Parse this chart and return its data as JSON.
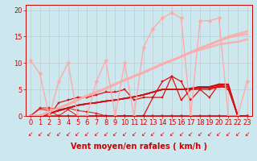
{
  "xlabel": "Vent moyen/en rafales ( km/h )",
  "background_color": "#cce8ee",
  "grid_color": "#bbbbbb",
  "xlim": [
    -0.5,
    23.5
  ],
  "ylim": [
    0,
    21
  ],
  "yticks": [
    0,
    5,
    10,
    15,
    20
  ],
  "xticks": [
    0,
    1,
    2,
    3,
    4,
    5,
    6,
    7,
    8,
    9,
    10,
    11,
    12,
    13,
    14,
    15,
    16,
    17,
    18,
    19,
    20,
    21,
    22,
    23
  ],
  "series": [
    {
      "x": [
        0,
        1,
        2,
        3,
        4,
        5,
        6,
        7,
        8,
        9,
        10,
        11,
        12,
        13,
        14,
        15,
        16,
        17,
        18,
        19,
        20,
        21,
        22,
        23
      ],
      "y": [
        0,
        1.3,
        1.0,
        0,
        1.2,
        0,
        0,
        0,
        0,
        0,
        0,
        0,
        0,
        0,
        0,
        0,
        0,
        0,
        0,
        0,
        0,
        0,
        0,
        0
      ],
      "color": "#dd2222",
      "linewidth": 0.8,
      "marker": "s",
      "markersize": 2.0,
      "alpha": 1.0
    },
    {
      "x": [
        0,
        1,
        2,
        3,
        4,
        5,
        6,
        7,
        8,
        9,
        10,
        11,
        12,
        13,
        14,
        15,
        16,
        17,
        18,
        19,
        20,
        21,
        22,
        23
      ],
      "y": [
        0,
        1.5,
        1.5,
        1.2,
        1.5,
        1.0,
        0.8,
        0.5,
        0,
        0,
        0,
        0,
        0,
        0,
        0,
        0,
        0,
        0,
        0,
        0,
        0,
        0,
        0,
        0
      ],
      "color": "#dd2222",
      "linewidth": 0.8,
      "marker": "s",
      "markersize": 2.0,
      "alpha": 1.0
    },
    {
      "x": [
        0,
        1,
        2,
        3,
        4,
        5,
        6,
        7,
        8,
        9,
        10,
        11,
        12,
        13,
        14,
        15,
        16,
        17,
        18,
        19,
        20,
        21,
        22,
        23
      ],
      "y": [
        0,
        0,
        0,
        0,
        0,
        0,
        0,
        0,
        0,
        0,
        0,
        0,
        0,
        0,
        0,
        0,
        0,
        0,
        0,
        0,
        0,
        0,
        0,
        0
      ],
      "color": "#dd2222",
      "linewidth": 1.0,
      "marker": "s",
      "markersize": 2.0,
      "alpha": 1.0
    },
    {
      "x": [
        0,
        1,
        2,
        3,
        4,
        5,
        6,
        7,
        8,
        9,
        10,
        11,
        12,
        13,
        14,
        15,
        16,
        17,
        18,
        19,
        20,
        21,
        22,
        23
      ],
      "y": [
        0,
        0,
        0.5,
        1.0,
        1.5,
        2.0,
        2.3,
        2.5,
        2.8,
        3.0,
        3.3,
        3.6,
        4.0,
        4.5,
        5.0,
        5.0,
        5.0,
        5.0,
        5.3,
        5.3,
        5.5,
        5.5,
        0,
        0
      ],
      "color": "#cc1111",
      "linewidth": 1.2,
      "marker": null,
      "markersize": 0,
      "alpha": 1.0
    },
    {
      "x": [
        0,
        1,
        2,
        3,
        4,
        5,
        6,
        7,
        8,
        9,
        10,
        11,
        12,
        13,
        14,
        15,
        16,
        17,
        18,
        19,
        20,
        21,
        22,
        23
      ],
      "y": [
        0,
        0,
        0.5,
        1.0,
        1.5,
        2.0,
        2.3,
        2.5,
        2.8,
        3.0,
        3.3,
        3.6,
        4.0,
        4.5,
        5.0,
        5.0,
        5.0,
        5.2,
        5.5,
        5.5,
        5.8,
        5.8,
        0,
        0
      ],
      "color": "#cc1111",
      "linewidth": 1.2,
      "marker": null,
      "markersize": 0,
      "alpha": 1.0
    },
    {
      "x": [
        0,
        1,
        2,
        3,
        4,
        5,
        6,
        7,
        8,
        9,
        10,
        11,
        12,
        13,
        14,
        15,
        16,
        17,
        18,
        19,
        20,
        21,
        22,
        23
      ],
      "y": [
        0,
        0,
        0.5,
        1.0,
        1.5,
        2.0,
        2.3,
        2.5,
        2.8,
        3.0,
        3.3,
        3.6,
        4.0,
        4.5,
        5.0,
        5.0,
        5.0,
        5.2,
        5.5,
        5.5,
        6.0,
        6.0,
        0,
        0
      ],
      "color": "#cc1111",
      "linewidth": 1.2,
      "marker": null,
      "markersize": 0,
      "alpha": 1.0
    },
    {
      "x": [
        0,
        1,
        2,
        3,
        4,
        5,
        6,
        7,
        8,
        9,
        10,
        11,
        12,
        13,
        14,
        15,
        16,
        17,
        18,
        19,
        20,
        21,
        22,
        23
      ],
      "y": [
        0,
        0,
        0,
        2.5,
        3.0,
        3.5,
        3.5,
        4.0,
        4.5,
        4.5,
        5.0,
        3.0,
        3.5,
        3.5,
        6.5,
        7.5,
        3.0,
        5.0,
        5.0,
        3.5,
        6.0,
        5.0,
        0,
        0
      ],
      "color": "#dd1111",
      "linewidth": 0.9,
      "marker": "s",
      "markersize": 2.0,
      "alpha": 1.0
    },
    {
      "x": [
        0,
        1,
        2,
        3,
        4,
        5,
        6,
        7,
        8,
        9,
        10,
        11,
        12,
        13,
        14,
        15,
        16,
        17,
        18,
        19,
        20,
        21,
        22,
        23
      ],
      "y": [
        0,
        0,
        0,
        0,
        0,
        0,
        0,
        0,
        0,
        0,
        0,
        0,
        0,
        3.5,
        3.5,
        7.5,
        6.5,
        3.0,
        5.0,
        5.0,
        5.5,
        5.5,
        0,
        0
      ],
      "color": "#dd1111",
      "linewidth": 0.9,
      "marker": "s",
      "markersize": 2.0,
      "alpha": 1.0
    },
    {
      "x": [
        0,
        1,
        2,
        3,
        4,
        5,
        6,
        7,
        8,
        9,
        10,
        11,
        12,
        13,
        14,
        15,
        16,
        17,
        18,
        19,
        20,
        21,
        22,
        23
      ],
      "y": [
        10.5,
        8.0,
        0,
        6.5,
        10.0,
        0,
        0,
        6.5,
        10.5,
        0,
        10.0,
        0,
        13.0,
        16.5,
        18.5,
        19.5,
        18.5,
        0,
        18.0,
        18.0,
        18.5,
        0,
        0,
        6.5
      ],
      "color": "#ffaaaa",
      "linewidth": 1.0,
      "marker": "D",
      "markersize": 2.5,
      "alpha": 1.0
    },
    {
      "x": [
        0,
        1,
        2,
        3,
        4,
        5,
        6,
        7,
        8,
        9,
        10,
        11,
        12,
        13,
        14,
        15,
        16,
        17,
        18,
        19,
        20,
        21,
        22,
        23
      ],
      "y": [
        0,
        0,
        0.8,
        1.5,
        2.2,
        3.0,
        3.8,
        4.5,
        5.2,
        6.0,
        6.8,
        7.5,
        8.2,
        9.0,
        9.8,
        10.5,
        11.2,
        12.0,
        12.8,
        13.5,
        14.2,
        15.0,
        15.5,
        16.0
      ],
      "color": "#ffaaaa",
      "linewidth": 1.8,
      "marker": null,
      "markersize": 0,
      "alpha": 0.85
    },
    {
      "x": [
        0,
        1,
        2,
        3,
        4,
        5,
        6,
        7,
        8,
        9,
        10,
        11,
        12,
        13,
        14,
        15,
        16,
        17,
        18,
        19,
        20,
        21,
        22,
        23
      ],
      "y": [
        0,
        0,
        0.8,
        1.5,
        2.2,
        3.0,
        3.8,
        4.5,
        5.2,
        6.0,
        6.8,
        7.5,
        8.2,
        9.0,
        9.8,
        10.5,
        11.2,
        12.0,
        12.8,
        13.5,
        14.2,
        14.8,
        15.2,
        15.5
      ],
      "color": "#ffaaaa",
      "linewidth": 1.8,
      "marker": null,
      "markersize": 0,
      "alpha": 0.85
    },
    {
      "x": [
        0,
        1,
        2,
        3,
        4,
        5,
        6,
        7,
        8,
        9,
        10,
        11,
        12,
        13,
        14,
        15,
        16,
        17,
        18,
        19,
        20,
        21,
        22,
        23
      ],
      "y": [
        0,
        0,
        0.8,
        1.5,
        2.2,
        3.0,
        3.8,
        4.5,
        5.2,
        6.0,
        6.8,
        7.5,
        8.2,
        9.0,
        9.8,
        10.5,
        11.2,
        12.0,
        12.5,
        13.0,
        13.5,
        13.8,
        14.0,
        14.5
      ],
      "color": "#ffaaaa",
      "linewidth": 1.8,
      "marker": null,
      "markersize": 0,
      "alpha": 0.85
    }
  ],
  "arrows": [
    "↙",
    "↙",
    "↙",
    "↙",
    "↙",
    "↙",
    "↙",
    "↙",
    "↙",
    "↙",
    "↙",
    "↙",
    "↙",
    "↙",
    "↙",
    "↙",
    "↙",
    "↙",
    "↙",
    "↙",
    "↙",
    "↙",
    "↙",
    "↙"
  ],
  "xlabel_fontsize": 7,
  "tick_fontsize": 6,
  "tick_color": "#cc0000",
  "axis_color": "#cc0000",
  "xlabel_color": "#cc0000",
  "xlabel_fontweight": "bold"
}
